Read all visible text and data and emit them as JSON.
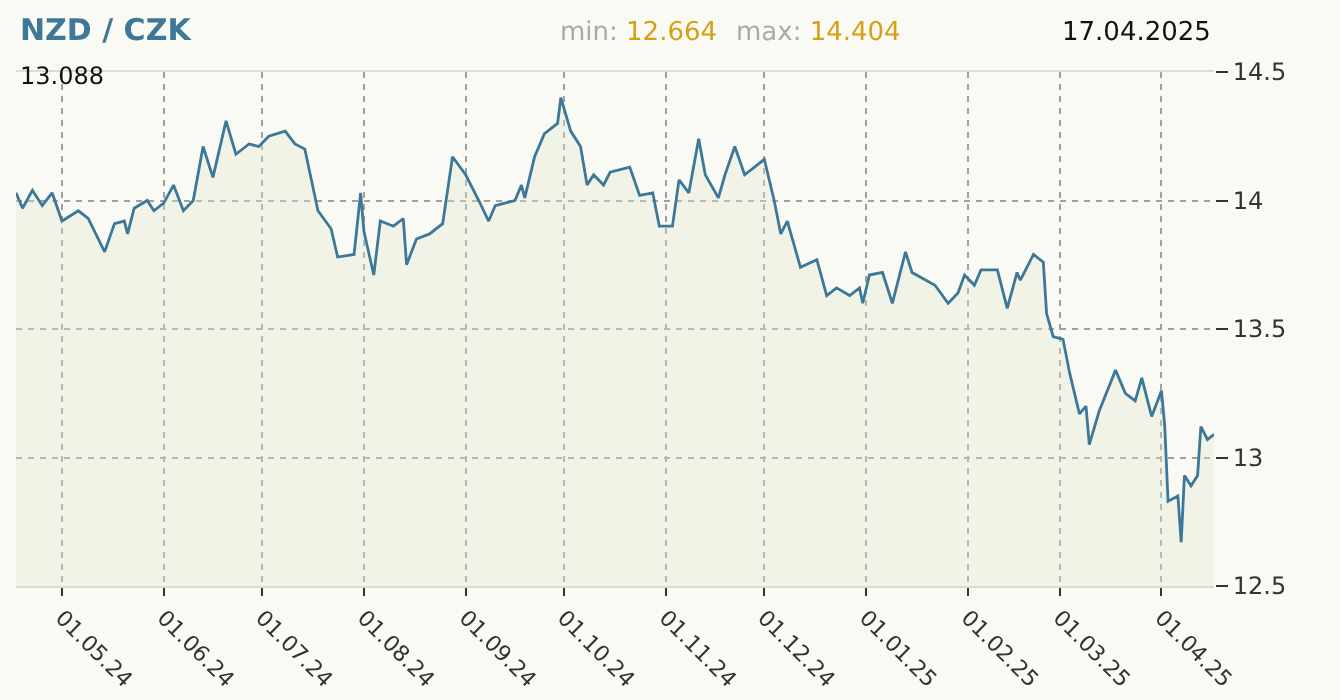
{
  "chart_data": {
    "type": "area",
    "title": "NZD / CZK",
    "annotations": [
      "min: 12.664",
      "max: 14.404",
      "17.04.2025",
      "13.088"
    ],
    "x": [
      "2024-04-17",
      "2024-04-19",
      "2024-04-22",
      "2024-04-25",
      "2024-04-28",
      "2024-05-01",
      "2024-05-06",
      "2024-05-09",
      "2024-05-14",
      "2024-05-17",
      "2024-05-20",
      "2024-05-21",
      "2024-05-23",
      "2024-05-27",
      "2024-05-29",
      "2024-06-01",
      "2024-06-04",
      "2024-06-07",
      "2024-06-10",
      "2024-06-13",
      "2024-06-16",
      "2024-06-20",
      "2024-06-23",
      "2024-06-27",
      "2024-06-30",
      "2024-07-03",
      "2024-07-08",
      "2024-07-11",
      "2024-07-14",
      "2024-07-18",
      "2024-07-22",
      "2024-07-24",
      "2024-07-29",
      "2024-07-31",
      "2024-08-01",
      "2024-08-04",
      "2024-08-06",
      "2024-08-10",
      "2024-08-13",
      "2024-08-14",
      "2024-08-17",
      "2024-08-21",
      "2024-08-25",
      "2024-08-28",
      "2024-09-01",
      "2024-09-05",
      "2024-09-08",
      "2024-09-10",
      "2024-09-16",
      "2024-09-18",
      "2024-09-19",
      "2024-09-22",
      "2024-09-25",
      "2024-09-29",
      "2024-09-30",
      "2024-10-03",
      "2024-10-06",
      "2024-10-08",
      "2024-10-10",
      "2024-10-13",
      "2024-10-15",
      "2024-10-21",
      "2024-10-24",
      "2024-10-28",
      "2024-10-30",
      "2024-11-03",
      "2024-11-05",
      "2024-11-08",
      "2024-11-11",
      "2024-11-13",
      "2024-11-17",
      "2024-11-19",
      "2024-11-22",
      "2024-11-25",
      "2024-11-28",
      "2024-12-01",
      "2024-12-04",
      "2024-12-06",
      "2024-12-08",
      "2024-12-12",
      "2024-12-17",
      "2024-12-20",
      "2024-12-23",
      "2024-12-27",
      "2024-12-30",
      "2024-12-31",
      "2025-01-02",
      "2025-01-06",
      "2025-01-09",
      "2025-01-13",
      "2025-01-15",
      "2025-01-22",
      "2025-01-26",
      "2025-01-29",
      "2025-01-31",
      "2025-02-03",
      "2025-02-05",
      "2025-02-10",
      "2025-02-13",
      "2025-02-16",
      "2025-02-17",
      "2025-02-21",
      "2025-02-24",
      "2025-02-25",
      "2025-02-27",
      "2025-03-02",
      "2025-03-04",
      "2025-03-07",
      "2025-03-09",
      "2025-03-10",
      "2025-03-13",
      "2025-03-18",
      "2025-03-21",
      "2025-03-24",
      "2025-03-26",
      "2025-03-29",
      "2025-04-01",
      "2025-04-02",
      "2025-04-03",
      "2025-04-06",
      "2025-04-07",
      "2025-04-08",
      "2025-04-10",
      "2025-04-12",
      "2025-04-13",
      "2025-04-15",
      "2025-04-17"
    ],
    "series": [
      {
        "color": "#3d7898",
        "values": [
          14.03,
          13.97,
          14.04,
          13.98,
          14.03,
          13.92,
          13.96,
          13.93,
          13.8,
          13.91,
          13.92,
          13.87,
          13.97,
          14.0,
          13.96,
          13.99,
          14.06,
          13.96,
          14.0,
          14.21,
          14.09,
          14.31,
          14.18,
          14.22,
          14.21,
          14.25,
          14.27,
          14.22,
          14.2,
          13.96,
          13.89,
          13.78,
          13.79,
          14.03,
          13.88,
          13.71,
          13.92,
          13.9,
          13.93,
          13.75,
          13.85,
          13.87,
          13.91,
          14.17,
          14.1,
          14.0,
          13.92,
          13.98,
          14.0,
          14.06,
          14.01,
          14.17,
          14.26,
          14.3,
          14.4,
          14.27,
          14.21,
          14.06,
          14.1,
          14.06,
          14.11,
          14.13,
          14.02,
          14.03,
          13.9,
          13.9,
          14.08,
          14.03,
          14.24,
          14.1,
          14.01,
          14.1,
          14.21,
          14.1,
          14.13,
          14.16,
          14.0,
          13.87,
          13.92,
          13.74,
          13.77,
          13.63,
          13.66,
          13.63,
          13.66,
          13.6,
          13.71,
          13.72,
          13.6,
          13.8,
          13.72,
          13.67,
          13.6,
          13.64,
          13.71,
          13.67,
          13.73,
          13.73,
          13.58,
          13.72,
          13.69,
          13.79,
          13.76,
          13.56,
          13.47,
          13.46,
          13.33,
          13.17,
          13.2,
          13.05,
          13.18,
          13.34,
          13.25,
          13.22,
          13.31,
          13.16,
          13.26,
          13.12,
          12.83,
          12.85,
          12.67,
          12.93,
          12.89,
          12.93,
          13.12,
          13.07,
          13.09
        ]
      }
    ],
    "xlim": [
      "2024-04-17",
      "2025-04-17"
    ],
    "xticks": [
      {
        "value": "2024-05-01",
        "label": "01.05.24"
      },
      {
        "value": "2024-06-01",
        "label": "01.06.24"
      },
      {
        "value": "2024-07-01",
        "label": "01.07.24"
      },
      {
        "value": "2024-08-01",
        "label": "01.08.24"
      },
      {
        "value": "2024-09-01",
        "label": "01.09.24"
      },
      {
        "value": "2024-10-01",
        "label": "01.10.24"
      },
      {
        "value": "2024-11-01",
        "label": "01.11.24"
      },
      {
        "value": "2024-12-01",
        "label": "01.12.24"
      },
      {
        "value": "2025-01-01",
        "label": "01.01.25"
      },
      {
        "value": "2025-02-01",
        "label": "01.02.25"
      },
      {
        "value": "2025-03-01",
        "label": "01.03.25"
      },
      {
        "value": "2025-04-01",
        "label": "01.04.25"
      }
    ],
    "ylim": [
      12.5,
      14.5
    ],
    "yticks": [
      12.5,
      13,
      13.5,
      14,
      14.5
    ],
    "grid": true,
    "legend": false,
    "line_style": "solid",
    "marker": "none"
  }
}
